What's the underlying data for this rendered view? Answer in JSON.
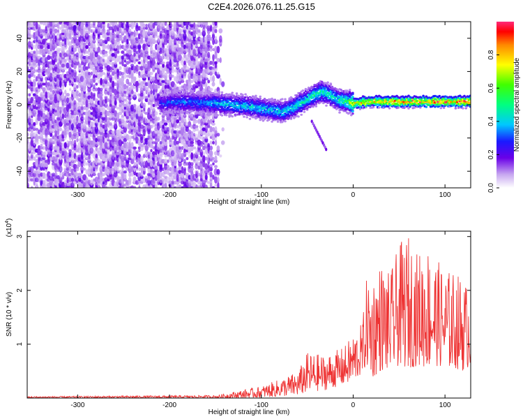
{
  "title": "C2E4.2026.076.11.25.G15",
  "chart_data": [
    {
      "type": "heatmap",
      "name": "spectrogram",
      "xlabel": "Height of straight line (km)",
      "ylabel": "Frequency (Hz)",
      "xlim": [
        -355,
        128
      ],
      "ylim": [
        -50,
        50
      ],
      "xticks": [
        -300,
        -200,
        -100,
        0,
        100
      ],
      "yticks": [
        -40,
        -20,
        0,
        20,
        40
      ],
      "colorbar": {
        "label": "Normalized spectral amplitude",
        "range": [
          0,
          1
        ],
        "ticks": [
          "0.0",
          "0.2",
          "0.4",
          "0.6",
          "0.8"
        ],
        "tick_values": [
          0,
          0.2,
          0.4,
          0.6,
          0.8
        ]
      },
      "noise_region_x": [
        -355,
        -140
      ],
      "ridge": {
        "x": [
          -210,
          -190,
          -170,
          -150,
          -130,
          -110,
          -90,
          -75,
          -60,
          -45,
          -35,
          -25,
          -15,
          -5,
          0,
          20,
          40,
          60,
          80,
          100,
          125
        ],
        "freq": [
          1,
          2,
          1.5,
          1,
          0,
          -1,
          -3,
          -4,
          0,
          5,
          8,
          6,
          3,
          2,
          1,
          2,
          2,
          2,
          2,
          2,
          2
        ],
        "amplitude": [
          0.3,
          0.35,
          0.35,
          0.4,
          0.45,
          0.45,
          0.45,
          0.45,
          0.5,
          0.5,
          0.55,
          0.5,
          0.5,
          0.6,
          0.85,
          0.85,
          0.9,
          0.95,
          0.95,
          0.95,
          0.95
        ]
      }
    },
    {
      "type": "line",
      "name": "snr",
      "xlabel": "Height of straight line (km)",
      "ylabel": "SNR (10 * v/v)",
      "y_multiplier": "(x10",
      "y_multiplier_exp": "4",
      "y_multiplier_close": ")",
      "xlim": [
        -355,
        128
      ],
      "ylim": [
        0,
        3.1
      ],
      "xticks": [
        -300,
        -200,
        -100,
        0,
        100
      ],
      "yticks": [
        1,
        2,
        3
      ],
      "color": "#ee3333",
      "envelope": {
        "x": [
          -355,
          -150,
          -130,
          -100,
          -80,
          -60,
          -50,
          -30,
          -10,
          0,
          10,
          15,
          20,
          30,
          40,
          50,
          60,
          70,
          80,
          90,
          100,
          110,
          120,
          128
        ],
        "max": [
          0.03,
          0.05,
          0.12,
          0.22,
          0.35,
          0.5,
          0.85,
          0.8,
          0.95,
          1.2,
          1.4,
          2.3,
          2.25,
          2.55,
          2.3,
          2.85,
          3.05,
          2.7,
          2.9,
          2.6,
          2.4,
          2.35,
          2.25,
          2.0
        ],
        "min": [
          0.0,
          0.0,
          0.0,
          0.01,
          0.03,
          0.05,
          0.1,
          0.15,
          0.25,
          0.3,
          0.45,
          0.6,
          0.35,
          0.5,
          0.5,
          0.6,
          0.55,
          0.6,
          0.55,
          0.6,
          0.55,
          0.55,
          0.5,
          0.6
        ]
      }
    }
  ]
}
